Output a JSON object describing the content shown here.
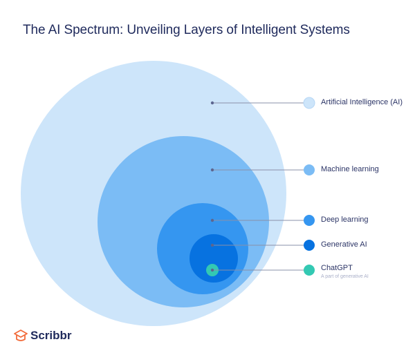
{
  "title": "The AI Spectrum: Unveiling Layers of Intelligent Systems",
  "layers": [
    {
      "label": "Artificial Intelligence (AI)",
      "color": "#cde5fa"
    },
    {
      "label": "Machine learning",
      "color": "#7bbcf5"
    },
    {
      "label": "Deep learning",
      "color": "#3596f0"
    },
    {
      "label": "Generative AI",
      "color": "#0772e0"
    },
    {
      "label": "ChatGPT",
      "sublabel": "A part of generative AI",
      "color": "#33c9b3"
    }
  ],
  "brand": {
    "name": "Scribbr",
    "color": "#f26b3a"
  }
}
